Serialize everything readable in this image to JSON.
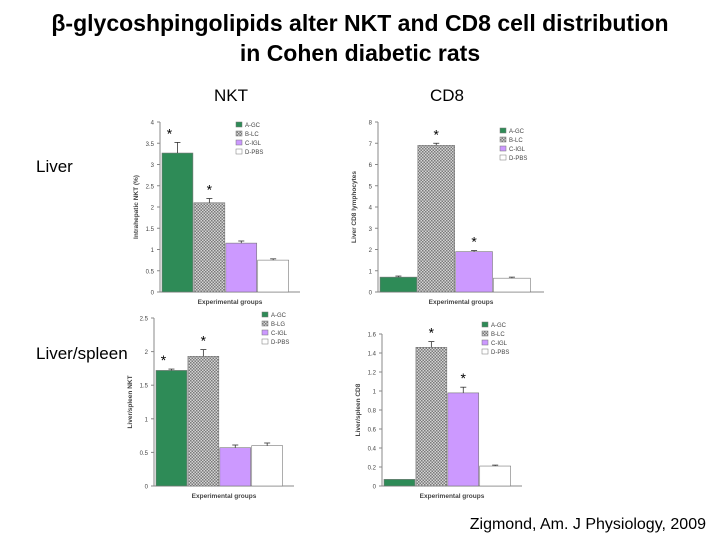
{
  "slide": {
    "title_line1": "β-glycoshpingolipids alter NKT and CD8 cell distribution",
    "title_line2": "in Cohen diabetic rats",
    "col_nkt": "NKT",
    "col_cd8": "CD8",
    "row_liver": "Liver",
    "row_liver_spleen": "Liver/spleen",
    "citation": "Zigmond, Am. J Physiology, 2009"
  },
  "colors": {
    "A-GC": "#2e8b57",
    "B-LC": "#c0c0c0",
    "C-IGL": "#cc99ff",
    "D-PBS": "#ffffff"
  },
  "chart_data": [
    {
      "id": "liver-nkt",
      "type": "bar",
      "categories": [
        "A-GC",
        "B-LC",
        "C-IGL",
        "D-PBS"
      ],
      "values": [
        3.27,
        2.1,
        1.15,
        0.75
      ],
      "errors": [
        0.25,
        0.1,
        0.05,
        0.03
      ],
      "stars": [
        "*",
        "*",
        "",
        ""
      ],
      "ylim": [
        0,
        4
      ],
      "ticks": [
        "0",
        "0.5",
        "1",
        "1.5",
        "2",
        "2.5",
        "3",
        "3.5",
        "4"
      ],
      "ylabel": "Intrahepatic NKT (%)",
      "xlabel": "Experimental   groups",
      "legend": [
        "A-GC",
        "B-LC",
        "C-IGL",
        "D-PBS"
      ],
      "legend_position": "top-right"
    },
    {
      "id": "liver-cd8",
      "type": "bar",
      "categories": [
        "A-GC",
        "B-LC",
        "C-IGL",
        "D-PBS"
      ],
      "values": [
        0.7,
        6.9,
        1.9,
        0.65
      ],
      "errors": [
        0.05,
        0.1,
        0.05,
        0.05
      ],
      "stars": [
        "",
        "*",
        "*",
        ""
      ],
      "ylim": [
        0,
        8
      ],
      "ticks": [
        "0",
        "1",
        "2",
        "3",
        "4",
        "5",
        "6",
        "7",
        "8"
      ],
      "ylabel": "Liver CD8 lymphocytes",
      "xlabel": "Experimental   groups",
      "legend": [
        "A-GC",
        "B-LC",
        "C-IGL",
        "D-PBS"
      ],
      "legend_position": "top-right"
    },
    {
      "id": "liver-spleen-nkt",
      "type": "bar",
      "categories": [
        "A-GC",
        "B-LG",
        "C-IGL",
        "D-PBS"
      ],
      "values": [
        1.72,
        1.93,
        0.57,
        0.6
      ],
      "errors": [
        0.02,
        0.1,
        0.04,
        0.04
      ],
      "stars": [
        "*",
        "*",
        "",
        ""
      ],
      "ylim": [
        0,
        2.5
      ],
      "ticks": [
        "0",
        "0.5",
        "1",
        "1.5",
        "2",
        "2.5"
      ],
      "ylabel": "Liver/spleen NKT",
      "xlabel": "Experimental   groups",
      "legend": [
        "A-GC",
        "B-LG",
        "C-IGL",
        "D-PBS"
      ],
      "legend_position": "top-right"
    },
    {
      "id": "liver-spleen-cd8",
      "type": "bar",
      "categories": [
        "A-GC",
        "B-LC",
        "C-IGL",
        "D-PBS"
      ],
      "values": [
        0.07,
        1.46,
        0.98,
        0.21
      ],
      "errors": [
        0.0,
        0.06,
        0.06,
        0.01
      ],
      "stars": [
        "",
        "*",
        "*",
        ""
      ],
      "ylim": [
        0,
        1.6
      ],
      "ticks": [
        "0",
        "0.2",
        "0.4",
        "0.6",
        "0.8",
        "1",
        "1.2",
        "1.4",
        "1.6"
      ],
      "ylabel": "Liver/spleen CD8",
      "xlabel": "Experimental   groups",
      "legend": [
        "A-GC",
        "B-LC",
        "C-IGL",
        "D-PBS"
      ],
      "legend_position": "top-right"
    }
  ]
}
